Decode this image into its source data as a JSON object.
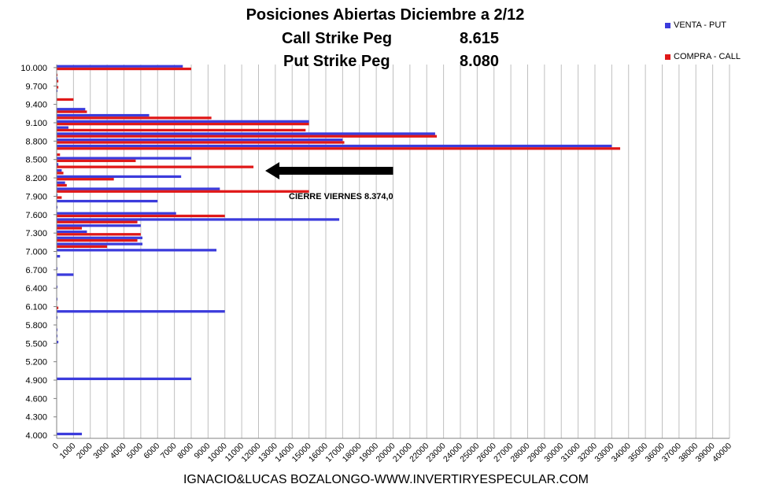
{
  "chart_data": {
    "type": "bar",
    "orientation": "horizontal",
    "title": "Posiciones Abiertas Diciembre a 2/12",
    "subtitle_lines": [
      {
        "label": "Call Strike Peg",
        "value": "8.615"
      },
      {
        "label": "Put Strike Peg",
        "value": "8.080"
      }
    ],
    "xlim": [
      0,
      40000
    ],
    "x_tick_step": 1000,
    "y_tick_labels": [
      "10.000",
      "9.700",
      "9.400",
      "9.100",
      "8.800",
      "8.500",
      "8.200",
      "7.900",
      "7.600",
      "7.300",
      "7.000",
      "6.700",
      "6.400",
      "6.100",
      "5.800",
      "5.500",
      "5.200",
      "4.900",
      "4.600",
      "4.300",
      "4.000"
    ],
    "grid": true,
    "legend_position": "top-right",
    "categories": [
      "10.000",
      "9.900",
      "9.800",
      "9.700",
      "9.600",
      "9.500",
      "9.400",
      "9.300",
      "9.200",
      "9.100",
      "9.000",
      "8.900",
      "8.800",
      "8.700",
      "8.600",
      "8.500",
      "8.400",
      "8.300",
      "8.200",
      "8.100",
      "8.000",
      "7.900",
      "7.800",
      "7.700",
      "7.600",
      "7.500",
      "7.400",
      "7.300",
      "7.200",
      "7.100",
      "7.000",
      "6.900",
      "6.800",
      "6.700",
      "6.600",
      "6.500",
      "6.400",
      "6.300",
      "6.200",
      "6.100",
      "6.000",
      "5.900",
      "5.800",
      "5.700",
      "5.600",
      "5.500",
      "5.400",
      "5.300",
      "5.200",
      "5.100",
      "5.000",
      "4.900",
      "4.800",
      "4.700",
      "4.600",
      "4.500",
      "4.400",
      "4.300",
      "4.200",
      "4.100",
      "4.000"
    ],
    "series": [
      {
        "name": "VENTA - PUT",
        "color": "#3b3bdc",
        "values": [
          7500,
          0,
          50,
          0,
          50,
          0,
          0,
          1700,
          5500,
          15000,
          700,
          22500,
          17000,
          33000,
          0,
          8000,
          100,
          300,
          7400,
          500,
          9700,
          50,
          6000,
          50,
          7100,
          16800,
          5000,
          1800,
          5100,
          5100,
          9500,
          200,
          0,
          50,
          1000,
          0,
          50,
          0,
          50,
          0,
          10000,
          50,
          0,
          50,
          50,
          100,
          0,
          0,
          0,
          0,
          0,
          8000,
          0,
          0,
          0,
          0,
          0,
          0,
          0,
          0,
          1500
        ]
      },
      {
        "name": "COMPRA - CALL",
        "color": "#e01818",
        "values": [
          8000,
          50,
          100,
          100,
          0,
          1000,
          0,
          1800,
          9200,
          15000,
          14800,
          22600,
          17100,
          33500,
          200,
          4700,
          11700,
          400,
          3400,
          600,
          15000,
          300,
          0,
          0,
          10000,
          4800,
          1500,
          5000,
          4800,
          3000,
          0,
          0,
          0,
          0,
          0,
          0,
          0,
          0,
          0,
          100,
          0,
          0,
          0,
          0,
          0,
          0,
          0,
          0,
          0,
          0,
          0,
          0,
          0,
          0,
          0,
          0,
          0,
          0,
          0,
          0,
          0
        ]
      }
    ],
    "annotations": [
      {
        "text": "CIERRE VIERNES  8.374,0",
        "arrow": true
      }
    ]
  },
  "footer": "IGNACIO&LUCAS BOZALONGO-WWW.INVERTIRYESPECULAR.COM"
}
